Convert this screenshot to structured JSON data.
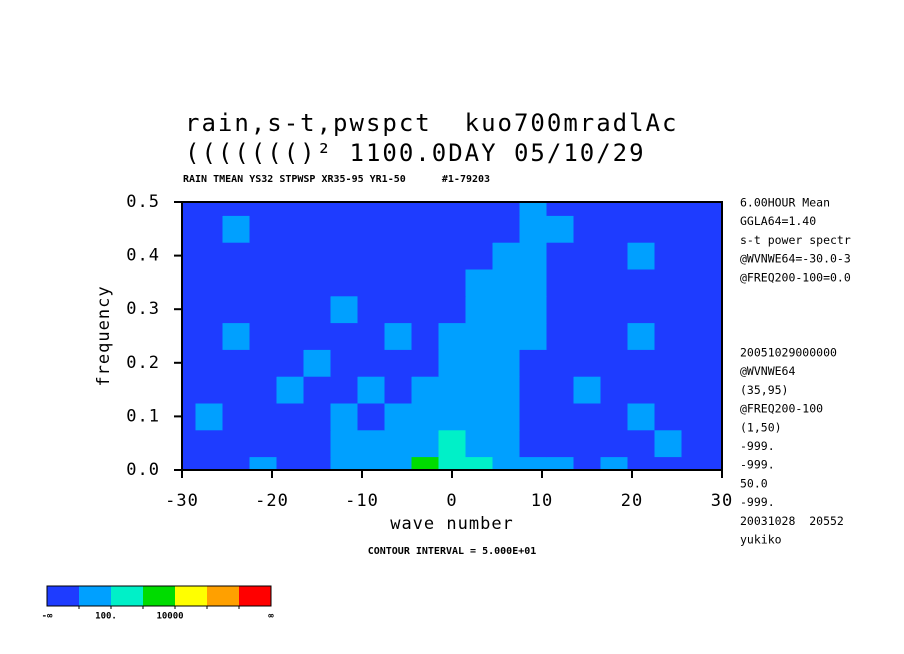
{
  "chart_data": {
    "type": "contour",
    "title": "rain,s-t,pwspct  kuo700mradlAc",
    "title2": "((((((()² 1100.0DAY 05/10/29",
    "subtitle": "RAIN TMEAN YS32 STPWSP XR35-95 YR1-50      #1-79203",
    "footer": "CONTOUR INTERVAL = 5.000E+01",
    "x_label": "wave number",
    "y_label": "frequency",
    "x": [
      -30,
      -27,
      -24,
      -21,
      -18,
      -15,
      -12,
      -9,
      -6,
      -3,
      0,
      3,
      6,
      9,
      12,
      15,
      18,
      21,
      24,
      27,
      30
    ],
    "y": [
      0,
      0.05,
      0.1,
      0.15,
      0.2,
      0.25,
      0.3,
      0.35,
      0.4,
      0.45,
      0.5
    ],
    "z": [
      [
        5,
        5,
        5,
        50,
        5,
        5,
        50,
        50,
        50,
        5000,
        500,
        500,
        50,
        50,
        50,
        5,
        50,
        5,
        5,
        5,
        5
      ],
      [
        5,
        5,
        5,
        5,
        5,
        5,
        50,
        50,
        50,
        50,
        500,
        50,
        50,
        5,
        5,
        5,
        5,
        5,
        50,
        5,
        5
      ],
      [
        5,
        50,
        5,
        5,
        5,
        5,
        50,
        5,
        50,
        50,
        50,
        50,
        50,
        5,
        5,
        5,
        5,
        50,
        5,
        5,
        5
      ],
      [
        5,
        5,
        5,
        5,
        50,
        5,
        5,
        50,
        5,
        50,
        50,
        50,
        50,
        5,
        5,
        50,
        5,
        5,
        5,
        5,
        5
      ],
      [
        5,
        5,
        5,
        5,
        5,
        50,
        5,
        5,
        5,
        5,
        50,
        50,
        50,
        5,
        5,
        5,
        5,
        5,
        5,
        5,
        5
      ],
      [
        5,
        5,
        50,
        5,
        5,
        5,
        5,
        5,
        50,
        5,
        50,
        50,
        50,
        50,
        5,
        5,
        5,
        50,
        5,
        5,
        5
      ],
      [
        5,
        5,
        5,
        5,
        5,
        5,
        50,
        5,
        5,
        5,
        5,
        50,
        50,
        50,
        5,
        5,
        5,
        5,
        5,
        5,
        5
      ],
      [
        5,
        5,
        5,
        5,
        5,
        5,
        5,
        5,
        5,
        5,
        5,
        50,
        50,
        50,
        5,
        5,
        5,
        5,
        5,
        5,
        5
      ],
      [
        5,
        5,
        5,
        5,
        5,
        5,
        5,
        5,
        5,
        5,
        5,
        5,
        50,
        50,
        5,
        5,
        5,
        50,
        5,
        5,
        5
      ],
      [
        5,
        5,
        50,
        5,
        5,
        5,
        5,
        5,
        5,
        5,
        5,
        5,
        5,
        50,
        50,
        5,
        5,
        5,
        5,
        5,
        5
      ],
      [
        5,
        5,
        5,
        5,
        5,
        5,
        5,
        5,
        5,
        5,
        5,
        5,
        5,
        50,
        5,
        5,
        5,
        5,
        5,
        5,
        5
      ]
    ],
    "levels": [
      10,
      100,
      1000,
      10000,
      100000,
      1000000
    ],
    "colors": [
      "#1e3cff",
      "#00a0ff",
      "#00f0c8",
      "#00dc00",
      "#ffff00",
      "#ffa000",
      "#ff0000"
    ],
    "colorbar_labels": [
      {
        "value": 100,
        "label": "100."
      },
      {
        "value": 10000,
        "label": "10000"
      }
    ],
    "colorbar_min_label": "-∞",
    "colorbar_max_label": "∞",
    "xlim": [
      -30,
      30
    ],
    "ylim": [
      0,
      0.5
    ],
    "xticks": [
      -30,
      -20,
      -10,
      0,
      10,
      20,
      30
    ],
    "yticks": [
      {
        "value": 0,
        "label": "0.0"
      },
      0.1,
      0.2,
      0.3,
      0.4,
      0.5
    ],
    "info_top": [
      "6.00HOUR Mean",
      "GGLA64=1.40",
      "s-t power spectr",
      "@WVNWE64=-30.0-3",
      "@FREQ200-100=0.0"
    ],
    "info_bottom": [
      "20051029000000",
      "@WVNWE64",
      "(35,95)",
      "@FREQ200-100",
      "(1,50)",
      "-999.",
      "-999.",
      "50.0",
      "-999.",
      "20031028  20552",
      "yukiko"
    ]
  }
}
